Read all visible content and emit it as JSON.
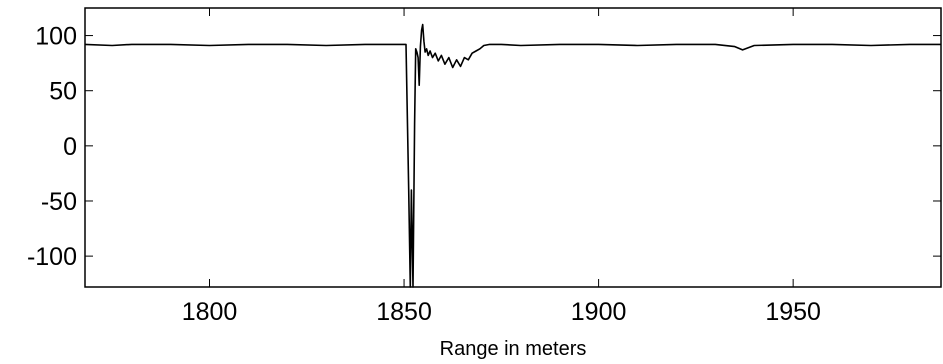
{
  "chart_data": {
    "type": "line",
    "title": "",
    "xlabel": "Range in meters",
    "ylabel": "",
    "xlim": [
      1768,
      1988
    ],
    "ylim": [
      -128,
      125
    ],
    "xticks": [
      1800,
      1850,
      1900,
      1950
    ],
    "yticks": [
      100,
      50,
      0,
      -50,
      -100
    ],
    "xtick_labels": [
      "1800",
      "1850",
      "1900",
      "1950"
    ],
    "ytick_labels": [
      "100",
      "50",
      "0",
      "-50",
      "-100"
    ],
    "grid": false,
    "legend": "none",
    "line_color": "#000000",
    "series": [
      {
        "x": [
          1768,
          1775,
          1780,
          1790,
          1800,
          1810,
          1820,
          1830,
          1840,
          1848,
          1850.5,
          1851.2,
          1851.6,
          1851.9,
          1852.3,
          1852.7,
          1853.0,
          1853.3,
          1853.6,
          1853.9,
          1854.2,
          1854.5,
          1854.8,
          1855.1,
          1855.4,
          1855.8,
          1856.2,
          1856.7,
          1857.3,
          1858.0,
          1858.8,
          1859.6,
          1860.5,
          1861.5,
          1862.5,
          1863.5,
          1864.5,
          1865.5,
          1866.5,
          1867.5,
          1868.5,
          1869.5,
          1870.5,
          1872,
          1875,
          1880,
          1890,
          1900,
          1910,
          1920,
          1930,
          1935,
          1937,
          1940,
          1950,
          1960,
          1970,
          1980,
          1988
        ],
        "y": [
          92,
          91,
          92,
          92,
          91,
          92,
          92,
          91,
          92,
          92,
          92,
          -40,
          -128,
          -40,
          -128,
          20,
          88,
          85,
          80,
          55,
          90,
          105,
          110,
          95,
          85,
          88,
          82,
          86,
          80,
          84,
          77,
          82,
          74,
          80,
          71,
          78,
          72,
          80,
          78,
          84,
          86,
          88,
          91,
          92,
          92,
          91,
          92,
          92,
          91,
          92,
          92,
          90,
          87,
          91,
          92,
          92,
          91,
          92,
          92
        ]
      }
    ]
  }
}
